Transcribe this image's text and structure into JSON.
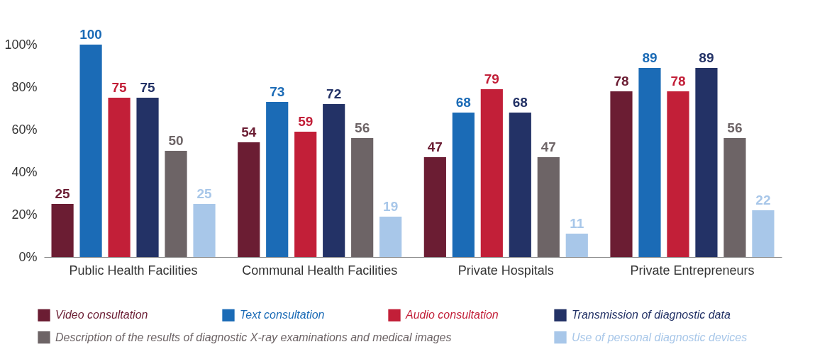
{
  "chart_data": {
    "type": "bar",
    "categories": [
      "Public Health Facilities",
      "Communal Health Facilities",
      "Private Hospitals",
      "Private Entrepreneurs"
    ],
    "series": [
      {
        "name": "Video consultation",
        "color": "#6b1d33",
        "values": [
          25,
          54,
          47,
          78
        ]
      },
      {
        "name": "Text consultation",
        "color": "#1b6bb6",
        "values": [
          100,
          73,
          68,
          89
        ]
      },
      {
        "name": "Audio consultation",
        "color": "#c21f38",
        "values": [
          75,
          59,
          79,
          78
        ]
      },
      {
        "name": "Transmission of diagnostic data",
        "color": "#233266",
        "values": [
          75,
          72,
          68,
          89
        ]
      },
      {
        "name": "Description of the results of diagnostic X-ray examinations and medical images",
        "color": "#6d6466",
        "values": [
          50,
          56,
          47,
          56
        ]
      },
      {
        "name": "Use of personal diagnostic devices",
        "color": "#a8c7e9",
        "values": [
          25,
          19,
          11,
          22
        ]
      }
    ],
    "ylim": [
      0,
      100
    ],
    "yticks": [
      {
        "value": 0,
        "label": "0%"
      },
      {
        "value": 20,
        "label": "20%"
      },
      {
        "value": 40,
        "label": "40%"
      },
      {
        "value": 60,
        "label": "60%"
      },
      {
        "value": 80,
        "label": "80%"
      },
      {
        "value": 100,
        "label": "100%"
      }
    ],
    "data_labels": true,
    "grid": false,
    "legend": "bottom"
  }
}
